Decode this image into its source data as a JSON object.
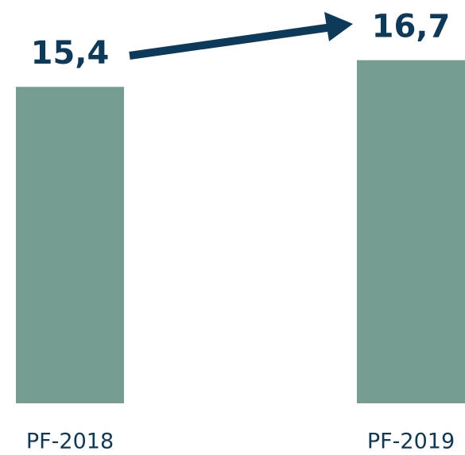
{
  "chart_data": {
    "type": "bar",
    "categories": [
      "PF-2018",
      "PF-2019"
    ],
    "values": [
      15.4,
      16.7
    ],
    "value_labels": [
      "15,4",
      "16,7"
    ],
    "color": "#759d91"
  }
}
